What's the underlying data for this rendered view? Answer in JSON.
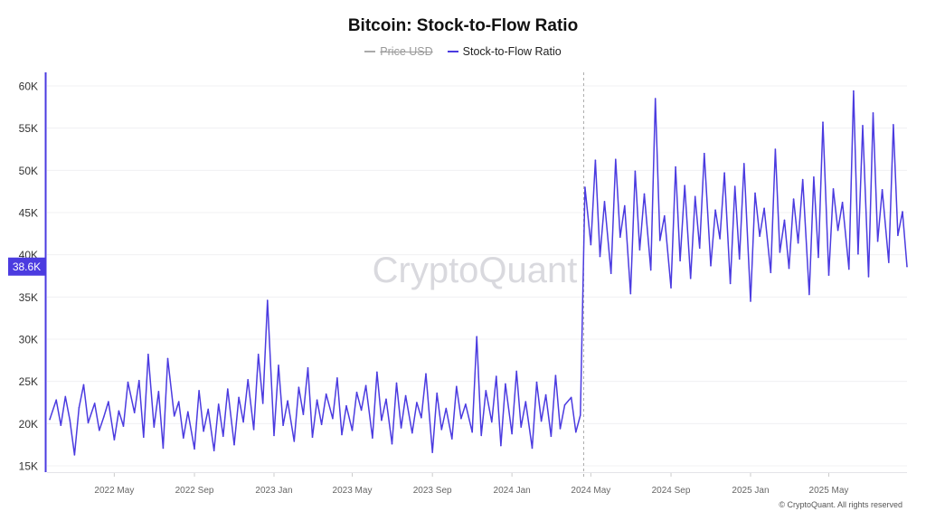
{
  "chart_data": {
    "type": "line",
    "title": "Bitcoin: Stock-to-Flow Ratio",
    "legend": [
      {
        "name": "Price USD",
        "color": "#aaaaaa",
        "hidden": true
      },
      {
        "name": "Stock-to-Flow Ratio",
        "color": "#4b3be0",
        "hidden": false
      }
    ],
    "ylim": [
      15000,
      60000
    ],
    "yticks": [
      {
        "v": 15000,
        "label": "15K"
      },
      {
        "v": 20000,
        "label": "20K"
      },
      {
        "v": 25000,
        "label": "25K"
      },
      {
        "v": 30000,
        "label": "30K"
      },
      {
        "v": 35000,
        "label": "35K"
      },
      {
        "v": 40000,
        "label": "40K"
      },
      {
        "v": 45000,
        "label": "45K"
      },
      {
        "v": 50000,
        "label": "50K"
      },
      {
        "v": 55000,
        "label": "55K"
      },
      {
        "v": 60000,
        "label": "60K"
      }
    ],
    "xlim": [
      "2022-01-22",
      "2025-08-29"
    ],
    "xticks": [
      {
        "v": "2022-05-01",
        "label": "2022 May"
      },
      {
        "v": "2022-09-01",
        "label": "2022 Sep"
      },
      {
        "v": "2023-01-01",
        "label": "2023 Jan"
      },
      {
        "v": "2023-05-01",
        "label": "2023 May"
      },
      {
        "v": "2023-09-01",
        "label": "2023 Sep"
      },
      {
        "v": "2024-01-01",
        "label": "2024 Jan"
      },
      {
        "v": "2024-05-01",
        "label": "2024 May"
      },
      {
        "v": "2024-09-01",
        "label": "2024 Sep"
      },
      {
        "v": "2025-01-01",
        "label": "2025 Jan"
      },
      {
        "v": "2025-05-01",
        "label": "2025 May"
      }
    ],
    "marker_line_date": "2024-04-20",
    "last_value_label": "38.6K",
    "grid": true,
    "legend_placement": "top-center",
    "series": [
      {
        "name": "Stock-to-Flow Ratio",
        "points": [
          [
            "2022-01-22",
            20500
          ],
          [
            "2022-02-01",
            22800
          ],
          [
            "2022-02-08",
            19800
          ],
          [
            "2022-02-15",
            23200
          ],
          [
            "2022-02-22",
            20400
          ],
          [
            "2022-03-01",
            16300
          ],
          [
            "2022-03-08",
            21900
          ],
          [
            "2022-03-15",
            24600
          ],
          [
            "2022-03-22",
            20100
          ],
          [
            "2022-04-01",
            22400
          ],
          [
            "2022-04-08",
            19200
          ],
          [
            "2022-04-15",
            20800
          ],
          [
            "2022-04-22",
            22600
          ],
          [
            "2022-05-01",
            18100
          ],
          [
            "2022-05-08",
            21500
          ],
          [
            "2022-05-15",
            19700
          ],
          [
            "2022-05-22",
            24900
          ],
          [
            "2022-06-01",
            21300
          ],
          [
            "2022-06-08",
            25100
          ],
          [
            "2022-06-15",
            18400
          ],
          [
            "2022-06-22",
            28200
          ],
          [
            "2022-07-01",
            19600
          ],
          [
            "2022-07-08",
            23800
          ],
          [
            "2022-07-15",
            17100
          ],
          [
            "2022-07-22",
            27700
          ],
          [
            "2022-08-01",
            20900
          ],
          [
            "2022-08-08",
            22600
          ],
          [
            "2022-08-15",
            18300
          ],
          [
            "2022-08-22",
            21400
          ],
          [
            "2022-09-01",
            17000
          ],
          [
            "2022-09-08",
            23900
          ],
          [
            "2022-09-15",
            19100
          ],
          [
            "2022-09-22",
            21700
          ],
          [
            "2022-10-01",
            16800
          ],
          [
            "2022-10-08",
            22300
          ],
          [
            "2022-10-15",
            18500
          ],
          [
            "2022-10-22",
            24100
          ],
          [
            "2022-11-01",
            17500
          ],
          [
            "2022-11-08",
            23100
          ],
          [
            "2022-11-15",
            20200
          ],
          [
            "2022-11-22",
            25200
          ],
          [
            "2022-12-01",
            19300
          ],
          [
            "2022-12-08",
            28200
          ],
          [
            "2022-12-15",
            22400
          ],
          [
            "2022-12-22",
            34600
          ],
          [
            "2023-01-01",
            18600
          ],
          [
            "2023-01-08",
            26900
          ],
          [
            "2023-01-15",
            19800
          ],
          [
            "2023-01-22",
            22700
          ],
          [
            "2023-02-01",
            17900
          ],
          [
            "2023-02-08",
            24300
          ],
          [
            "2023-02-15",
            21100
          ],
          [
            "2023-02-22",
            26600
          ],
          [
            "2023-03-01",
            18400
          ],
          [
            "2023-03-08",
            22800
          ],
          [
            "2023-03-15",
            19900
          ],
          [
            "2023-03-22",
            23500
          ],
          [
            "2023-04-01",
            20600
          ],
          [
            "2023-04-08",
            25400
          ],
          [
            "2023-04-15",
            18700
          ],
          [
            "2023-04-22",
            22100
          ],
          [
            "2023-05-01",
            19200
          ],
          [
            "2023-05-08",
            23700
          ],
          [
            "2023-05-15",
            21600
          ],
          [
            "2023-05-22",
            24500
          ],
          [
            "2023-06-01",
            18300
          ],
          [
            "2023-06-08",
            26100
          ],
          [
            "2023-06-15",
            20400
          ],
          [
            "2023-06-22",
            22900
          ],
          [
            "2023-07-01",
            17600
          ],
          [
            "2023-07-08",
            24800
          ],
          [
            "2023-07-15",
            19500
          ],
          [
            "2023-07-22",
            23300
          ],
          [
            "2023-08-01",
            18900
          ],
          [
            "2023-08-08",
            22500
          ],
          [
            "2023-08-15",
            20700
          ],
          [
            "2023-08-22",
            25900
          ],
          [
            "2023-09-01",
            16600
          ],
          [
            "2023-09-08",
            23600
          ],
          [
            "2023-09-15",
            19300
          ],
          [
            "2023-09-22",
            21800
          ],
          [
            "2023-10-01",
            18200
          ],
          [
            "2023-10-08",
            24400
          ],
          [
            "2023-10-15",
            20600
          ],
          [
            "2023-10-22",
            22300
          ],
          [
            "2023-11-01",
            19000
          ],
          [
            "2023-11-08",
            30300
          ],
          [
            "2023-11-15",
            18600
          ],
          [
            "2023-11-22",
            23900
          ],
          [
            "2023-12-01",
            20200
          ],
          [
            "2023-12-08",
            25600
          ],
          [
            "2023-12-15",
            17400
          ],
          [
            "2023-12-22",
            24700
          ],
          [
            "2024-01-01",
            18800
          ],
          [
            "2024-01-08",
            26200
          ],
          [
            "2024-01-15",
            19600
          ],
          [
            "2024-01-22",
            22600
          ],
          [
            "2024-02-01",
            17100
          ],
          [
            "2024-02-08",
            24900
          ],
          [
            "2024-02-15",
            20300
          ],
          [
            "2024-02-22",
            23400
          ],
          [
            "2024-03-01",
            18500
          ],
          [
            "2024-03-08",
            25700
          ],
          [
            "2024-03-15",
            19400
          ],
          [
            "2024-03-22",
            22200
          ],
          [
            "2024-04-01",
            23100
          ],
          [
            "2024-04-08",
            19000
          ],
          [
            "2024-04-15",
            21000
          ],
          [
            "2024-04-22",
            48000
          ],
          [
            "2024-05-01",
            41200
          ],
          [
            "2024-05-08",
            51200
          ],
          [
            "2024-05-15",
            39800
          ],
          [
            "2024-05-22",
            46300
          ],
          [
            "2024-06-01",
            37800
          ],
          [
            "2024-06-08",
            51300
          ],
          [
            "2024-06-15",
            42100
          ],
          [
            "2024-06-22",
            45800
          ],
          [
            "2024-07-01",
            35400
          ],
          [
            "2024-07-08",
            49900
          ],
          [
            "2024-07-15",
            40600
          ],
          [
            "2024-07-22",
            47200
          ],
          [
            "2024-08-01",
            38200
          ],
          [
            "2024-08-08",
            58500
          ],
          [
            "2024-08-15",
            41700
          ],
          [
            "2024-08-22",
            44600
          ],
          [
            "2024-09-01",
            36100
          ],
          [
            "2024-09-08",
            50400
          ],
          [
            "2024-09-15",
            39300
          ],
          [
            "2024-09-22",
            48200
          ],
          [
            "2024-10-01",
            37200
          ],
          [
            "2024-10-08",
            46900
          ],
          [
            "2024-10-15",
            40800
          ],
          [
            "2024-10-22",
            52000
          ],
          [
            "2024-11-01",
            38700
          ],
          [
            "2024-11-08",
            45300
          ],
          [
            "2024-11-15",
            41900
          ],
          [
            "2024-11-22",
            49700
          ],
          [
            "2024-12-01",
            36600
          ],
          [
            "2024-12-08",
            48100
          ],
          [
            "2024-12-15",
            39500
          ],
          [
            "2024-12-22",
            50800
          ],
          [
            "2025-01-01",
            34500
          ],
          [
            "2025-01-08",
            47300
          ],
          [
            "2025-01-15",
            42200
          ],
          [
            "2025-01-22",
            45500
          ],
          [
            "2025-02-01",
            37900
          ],
          [
            "2025-02-08",
            52500
          ],
          [
            "2025-02-15",
            40300
          ],
          [
            "2025-02-22",
            44100
          ],
          [
            "2025-03-01",
            38400
          ],
          [
            "2025-03-08",
            46600
          ],
          [
            "2025-03-15",
            41400
          ],
          [
            "2025-03-22",
            48900
          ],
          [
            "2025-04-01",
            35300
          ],
          [
            "2025-04-08",
            49200
          ],
          [
            "2025-04-15",
            39700
          ],
          [
            "2025-04-22",
            55700
          ],
          [
            "2025-05-01",
            37600
          ],
          [
            "2025-05-08",
            47800
          ],
          [
            "2025-05-15",
            42900
          ],
          [
            "2025-05-22",
            46200
          ],
          [
            "2025-06-01",
            38300
          ],
          [
            "2025-06-08",
            59400
          ],
          [
            "2025-06-15",
            40100
          ],
          [
            "2025-06-22",
            55300
          ],
          [
            "2025-07-01",
            37400
          ],
          [
            "2025-07-08",
            56800
          ],
          [
            "2025-07-15",
            41600
          ],
          [
            "2025-07-22",
            47700
          ],
          [
            "2025-08-01",
            39100
          ],
          [
            "2025-08-08",
            55400
          ],
          [
            "2025-08-15",
            42300
          ],
          [
            "2025-08-22",
            45100
          ],
          [
            "2025-08-29",
            38600
          ]
        ]
      }
    ]
  },
  "watermark": "CryptoQuant",
  "footer": "© CryptoQuant. All rights reserved"
}
